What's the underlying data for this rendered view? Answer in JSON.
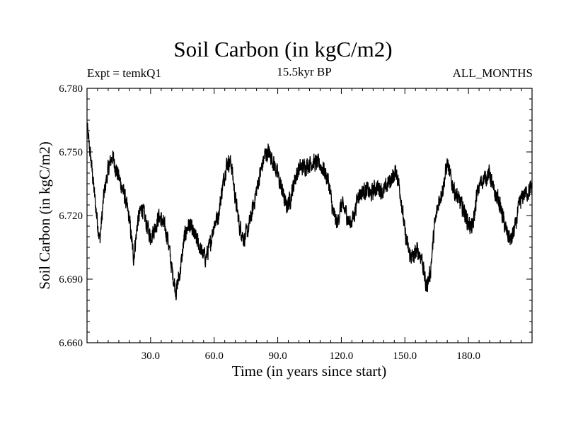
{
  "chart_data": {
    "type": "line",
    "title": "Soil Carbon (in kgC/m2)",
    "subtitle_left": "Expt = temkQ1",
    "subtitle_center": "15.5kyr BP",
    "subtitle_right": "ALL_MONTHS",
    "xlabel": "Time (in years since start)",
    "ylabel": "Soil Carbon (in kgC/m2)",
    "xlim": [
      0,
      210
    ],
    "ylim": [
      6.66,
      6.78
    ],
    "xticks": [
      30,
      60,
      90,
      120,
      150,
      180
    ],
    "xtick_labels": [
      "30.0",
      "60.0",
      "90.0",
      "120.0",
      "150.0",
      "180.0"
    ],
    "yticks": [
      6.66,
      6.69,
      6.72,
      6.75,
      6.78
    ],
    "ytick_labels": [
      "6.660",
      "6.690",
      "6.720",
      "6.750",
      "6.780"
    ],
    "series": [
      {
        "name": "Soil Carbon",
        "color": "#000000",
        "x": [
          0,
          2,
          4,
          6,
          8,
          10,
          12,
          14,
          16,
          18,
          20,
          22,
          24,
          26,
          28,
          30,
          32,
          34,
          36,
          38,
          40,
          42,
          44,
          46,
          48,
          50,
          52,
          54,
          56,
          58,
          60,
          62,
          64,
          66,
          68,
          70,
          72,
          74,
          76,
          78,
          80,
          82,
          84,
          86,
          88,
          90,
          92,
          94,
          96,
          98,
          100,
          102,
          104,
          106,
          108,
          110,
          112,
          114,
          116,
          118,
          120,
          122,
          124,
          126,
          128,
          130,
          132,
          134,
          136,
          138,
          140,
          142,
          144,
          146,
          148,
          150,
          152,
          154,
          156,
          158,
          160,
          162,
          164,
          166,
          168,
          170,
          172,
          174,
          176,
          178,
          180,
          182,
          184,
          186,
          188,
          190,
          192,
          194,
          196,
          198,
          200,
          202,
          204,
          206,
          208,
          210
        ],
        "values": [
          6.762,
          6.745,
          6.725,
          6.708,
          6.73,
          6.742,
          6.748,
          6.741,
          6.735,
          6.728,
          6.718,
          6.7,
          6.718,
          6.724,
          6.716,
          6.71,
          6.714,
          6.72,
          6.716,
          6.71,
          6.695,
          6.684,
          6.694,
          6.71,
          6.716,
          6.712,
          6.708,
          6.703,
          6.7,
          6.706,
          6.716,
          6.72,
          6.734,
          6.745,
          6.745,
          6.728,
          6.715,
          6.709,
          6.713,
          6.722,
          6.732,
          6.741,
          6.749,
          6.75,
          6.745,
          6.739,
          6.732,
          6.724,
          6.728,
          6.737,
          6.742,
          6.743,
          6.744,
          6.745,
          6.745,
          6.744,
          6.741,
          6.736,
          6.722,
          6.716,
          6.725,
          6.722,
          6.716,
          6.72,
          6.73,
          6.731,
          6.732,
          6.73,
          6.733,
          6.733,
          6.731,
          6.735,
          6.738,
          6.741,
          6.73,
          6.712,
          6.702,
          6.7,
          6.704,
          6.7,
          6.686,
          6.693,
          6.715,
          6.727,
          6.733,
          6.745,
          6.736,
          6.73,
          6.726,
          6.722,
          6.716,
          6.714,
          6.73,
          6.736,
          6.738,
          6.74,
          6.731,
          6.728,
          6.72,
          6.712,
          6.708,
          6.714,
          6.725,
          6.73,
          6.731,
          6.733
        ]
      }
    ]
  }
}
